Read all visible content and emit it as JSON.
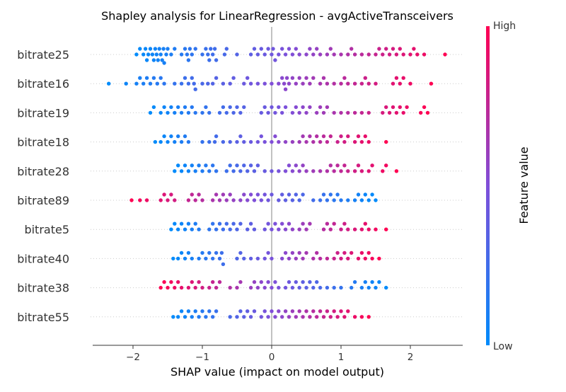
{
  "chart_data": {
    "type": "scatter",
    "subtype": "beeswarm",
    "title": "Shapley analysis for LinearRegression - avgActiveTransceivers",
    "xlabel": "SHAP value (impact on model output)",
    "xlim": [
      -2.55,
      2.75
    ],
    "x_ticks": [
      -2,
      -1,
      0,
      1,
      2
    ],
    "x_tick_labels": [
      "−2",
      "−1",
      "0",
      "1",
      "2"
    ],
    "zero_line": true,
    "features": [
      {
        "name": "bitrate25",
        "direction": "pos",
        "points": [
          -1.95,
          -1.9,
          -1.85,
          -1.82,
          -1.8,
          -1.78,
          -1.75,
          -1.72,
          -1.7,
          -1.68,
          -1.66,
          -1.64,
          -1.62,
          -1.6,
          -1.58,
          -1.56,
          -1.55,
          -1.52,
          -1.5,
          -1.45,
          -1.4,
          -1.3,
          -1.25,
          -1.22,
          -1.2,
          -1.18,
          -1.15,
          -1.1,
          -1.0,
          -0.95,
          -0.92,
          -0.9,
          -0.88,
          -0.85,
          -0.82,
          -0.8,
          -0.68,
          -0.65,
          -0.5,
          -0.3,
          -0.25,
          -0.2,
          -0.15,
          -0.1,
          -0.05,
          0.0,
          0.02,
          0.05,
          0.1,
          0.15,
          0.2,
          0.25,
          0.3,
          0.35,
          0.4,
          0.5,
          0.55,
          0.6,
          0.65,
          0.7,
          0.8,
          0.85,
          0.9,
          1.0,
          1.1,
          1.15,
          1.2,
          1.3,
          1.4,
          1.5,
          1.55,
          1.6,
          1.65,
          1.7,
          1.75,
          1.8,
          1.85,
          1.9,
          2.0,
          2.05,
          2.1,
          2.2,
          2.5
        ]
      },
      {
        "name": "bitrate16",
        "direction": "pos",
        "points": [
          -2.35,
          -2.1,
          -1.95,
          -1.9,
          -1.85,
          -1.8,
          -1.75,
          -1.7,
          -1.65,
          -1.6,
          -1.55,
          -1.4,
          -1.3,
          -1.25,
          -1.2,
          -1.15,
          -1.12,
          -1.1,
          -1.0,
          -0.92,
          -0.85,
          -0.8,
          -0.7,
          -0.6,
          -0.55,
          -0.4,
          -0.35,
          -0.3,
          -0.2,
          -0.1,
          0.0,
          0.1,
          0.15,
          0.18,
          0.2,
          0.22,
          0.25,
          0.3,
          0.35,
          0.4,
          0.45,
          0.5,
          0.55,
          0.6,
          0.7,
          0.75,
          0.8,
          0.9,
          1.0,
          1.05,
          1.1,
          1.2,
          1.3,
          1.35,
          1.4,
          1.5,
          1.75,
          1.8,
          1.85,
          1.9,
          2.0,
          2.3
        ]
      },
      {
        "name": "bitrate19",
        "direction": "pos",
        "points": [
          -1.75,
          -1.7,
          -1.6,
          -1.55,
          -1.5,
          -1.45,
          -1.4,
          -1.35,
          -1.3,
          -1.25,
          -1.2,
          -1.15,
          -1.1,
          -1.0,
          -0.95,
          -0.9,
          -0.75,
          -0.7,
          -0.65,
          -0.6,
          -0.55,
          -0.5,
          -0.45,
          -0.4,
          -0.15,
          -0.1,
          -0.05,
          0.0,
          0.05,
          0.1,
          0.15,
          0.2,
          0.3,
          0.35,
          0.4,
          0.45,
          0.5,
          0.55,
          0.65,
          0.7,
          0.75,
          0.8,
          0.9,
          1.0,
          1.1,
          1.2,
          1.3,
          1.4,
          1.6,
          1.65,
          1.7,
          1.75,
          1.8,
          1.85,
          1.9,
          1.95,
          2.15,
          2.2,
          2.25
        ]
      },
      {
        "name": "bitrate18",
        "direction": "pos",
        "points": [
          -1.68,
          -1.6,
          -1.55,
          -1.5,
          -1.45,
          -1.4,
          -1.35,
          -1.3,
          -1.25,
          -1.2,
          -1.0,
          -0.9,
          -0.82,
          -0.8,
          -0.7,
          -0.6,
          -0.5,
          -0.45,
          -0.4,
          -0.3,
          -0.2,
          -0.15,
          -0.1,
          0.0,
          0.05,
          0.1,
          0.2,
          0.3,
          0.4,
          0.45,
          0.5,
          0.55,
          0.6,
          0.65,
          0.7,
          0.75,
          0.8,
          0.85,
          0.95,
          1.0,
          1.05,
          1.1,
          1.2,
          1.25,
          1.3,
          1.35,
          1.4,
          1.65
        ]
      },
      {
        "name": "bitrate28",
        "direction": "pos",
        "points": [
          -1.4,
          -1.35,
          -1.3,
          -1.25,
          -1.2,
          -1.15,
          -1.1,
          -1.05,
          -1.0,
          -0.95,
          -0.9,
          -0.85,
          -0.8,
          -0.65,
          -0.6,
          -0.55,
          -0.5,
          -0.45,
          -0.4,
          -0.35,
          -0.3,
          -0.25,
          -0.2,
          -0.1,
          0.0,
          0.1,
          0.2,
          0.25,
          0.3,
          0.35,
          0.4,
          0.45,
          0.5,
          0.6,
          0.7,
          0.8,
          0.85,
          0.9,
          0.95,
          1.0,
          1.05,
          1.1,
          1.2,
          1.25,
          1.3,
          1.4,
          1.45,
          1.6,
          1.65,
          1.8
        ]
      },
      {
        "name": "bitrate89",
        "direction": "neg",
        "points": [
          -2.02,
          -1.9,
          -1.8,
          -1.6,
          -1.55,
          -1.5,
          -1.45,
          -1.4,
          -1.2,
          -1.15,
          -1.1,
          -1.05,
          -1.0,
          -0.85,
          -0.8,
          -0.75,
          -0.7,
          -0.65,
          -0.6,
          -0.55,
          -0.45,
          -0.4,
          -0.35,
          -0.3,
          -0.25,
          -0.2,
          -0.15,
          -0.1,
          -0.05,
          0.0,
          0.1,
          0.15,
          0.2,
          0.25,
          0.3,
          0.35,
          0.4,
          0.45,
          0.6,
          0.7,
          0.75,
          0.8,
          0.85,
          0.9,
          0.95,
          1.0,
          1.1,
          1.2,
          1.25,
          1.3,
          1.35,
          1.4,
          1.45,
          1.5
        ]
      },
      {
        "name": "bitrate5",
        "direction": "pos",
        "points": [
          -1.45,
          -1.4,
          -1.35,
          -1.3,
          -1.25,
          -1.2,
          -1.15,
          -1.1,
          -1.05,
          -0.9,
          -0.85,
          -0.8,
          -0.75,
          -0.7,
          -0.65,
          -0.6,
          -0.55,
          -0.5,
          -0.45,
          -0.35,
          -0.3,
          -0.25,
          -0.1,
          -0.05,
          0.0,
          0.05,
          0.1,
          0.15,
          0.2,
          0.25,
          0.3,
          0.4,
          0.45,
          0.5,
          0.55,
          0.75,
          0.8,
          0.85,
          0.9,
          1.0,
          1.05,
          1.1,
          1.2,
          1.3,
          1.35,
          1.4,
          1.5,
          1.65
        ]
      },
      {
        "name": "bitrate40",
        "direction": "pos",
        "points": [
          -1.42,
          -1.35,
          -1.3,
          -1.25,
          -1.2,
          -1.15,
          -1.05,
          -1.0,
          -0.95,
          -0.9,
          -0.85,
          -0.8,
          -0.75,
          -0.72,
          -0.7,
          -0.5,
          -0.45,
          -0.4,
          -0.3,
          -0.2,
          -0.1,
          -0.05,
          0.0,
          0.15,
          0.2,
          0.25,
          0.3,
          0.35,
          0.4,
          0.45,
          0.5,
          0.6,
          0.65,
          0.7,
          0.8,
          0.9,
          0.95,
          1.0,
          1.05,
          1.1,
          1.15,
          1.25,
          1.3,
          1.35,
          1.4,
          1.45,
          1.55
        ]
      },
      {
        "name": "bitrate38",
        "direction": "neg",
        "points": [
          -1.6,
          -1.55,
          -1.5,
          -1.45,
          -1.4,
          -1.35,
          -1.3,
          -1.2,
          -1.15,
          -1.1,
          -1.05,
          -1.0,
          -0.9,
          -0.85,
          -0.8,
          -0.75,
          -0.6,
          -0.5,
          -0.45,
          -0.3,
          -0.25,
          -0.2,
          -0.15,
          -0.1,
          -0.05,
          0.0,
          0.05,
          0.1,
          0.2,
          0.25,
          0.3,
          0.35,
          0.4,
          0.45,
          0.5,
          0.55,
          0.6,
          0.65,
          0.7,
          0.8,
          0.9,
          1.0,
          1.15,
          1.2,
          1.3,
          1.35,
          1.4,
          1.45,
          1.5,
          1.55,
          1.65
        ]
      },
      {
        "name": "bitrate55",
        "direction": "pos",
        "points": [
          -1.42,
          -1.35,
          -1.3,
          -1.25,
          -1.2,
          -1.15,
          -1.1,
          -1.05,
          -1.0,
          -0.95,
          -0.9,
          -0.85,
          -0.8,
          -0.6,
          -0.5,
          -0.45,
          -0.4,
          -0.35,
          -0.3,
          -0.25,
          -0.15,
          -0.1,
          -0.05,
          0.0,
          0.05,
          0.1,
          0.15,
          0.2,
          0.25,
          0.3,
          0.35,
          0.4,
          0.45,
          0.5,
          0.55,
          0.6,
          0.65,
          0.7,
          0.75,
          0.8,
          0.85,
          0.9,
          0.95,
          1.0,
          1.05,
          1.1,
          1.2,
          1.3,
          1.4
        ]
      }
    ],
    "colorbar": {
      "label": "Feature value",
      "high_label": "High",
      "low_label": "Low",
      "colors": [
        "#008bfb",
        "#7f4fd9",
        "#ff0052"
      ]
    }
  }
}
